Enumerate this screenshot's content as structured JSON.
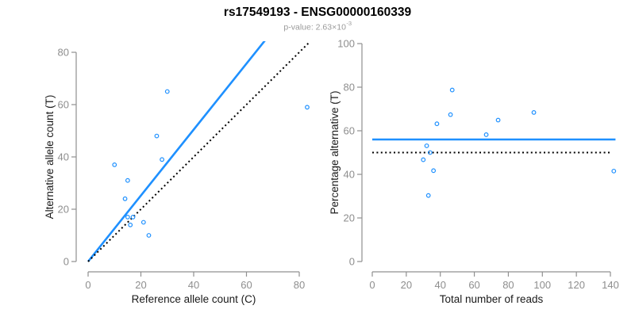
{
  "header": {
    "title": "rs17549193 - ENSG00000160339",
    "pvalue_prefix": "p-value: 2.63×10",
    "pvalue_exponent": "-3"
  },
  "colors": {
    "point_blue": "#1E90FF",
    "line_blue": "#1E90FF",
    "dotted_black": "#000000",
    "axis_line_gray": "#909090",
    "tick_label_gray": "#8e8e8e",
    "axis_title_color": "#1a1a1a",
    "subtitle_gray": "#9a9a9a",
    "title_color": "#000000",
    "background": "#ffffff"
  },
  "chart_data": [
    {
      "type": "scatter",
      "name": "allele-counts-scatter",
      "xlabel": "Reference allele count (C)",
      "ylabel": "Alternative allele count (T)",
      "xlim": [
        0,
        80
      ],
      "ylim": [
        0,
        80
      ],
      "xticks": [
        0,
        20,
        40,
        60,
        80
      ],
      "yticks": [
        0,
        20,
        40,
        60,
        80
      ],
      "grid": false,
      "points": [
        [
          10,
          37
        ],
        [
          15,
          31
        ],
        [
          14,
          24
        ],
        [
          15,
          17
        ],
        [
          17,
          17
        ],
        [
          16,
          14
        ],
        [
          21,
          15
        ],
        [
          23,
          10
        ],
        [
          26,
          48
        ],
        [
          28,
          39
        ],
        [
          30,
          65
        ],
        [
          83,
          59
        ]
      ],
      "lines": [
        {
          "name": "fitted-ratio-line",
          "style": "solid",
          "color": "#1E90FF",
          "x1": 0,
          "y1": 0,
          "x2": 67,
          "y2": 84.5
        },
        {
          "name": "identity-line",
          "style": "dotted",
          "color": "#000000",
          "x1": 0,
          "y1": 0,
          "x2": 85,
          "y2": 85
        }
      ]
    },
    {
      "type": "scatter",
      "name": "percentage-vs-reads-scatter",
      "xlabel": "Total number of reads",
      "ylabel": "Percentage alternative (T)",
      "xlim": [
        0,
        140
      ],
      "ylim": [
        0,
        100
      ],
      "xticks": [
        0,
        20,
        40,
        60,
        80,
        100,
        120,
        140
      ],
      "yticks": [
        0,
        20,
        40,
        60,
        80,
        100
      ],
      "grid": false,
      "points": [
        [
          47,
          78.7
        ],
        [
          46,
          67.4
        ],
        [
          38,
          63.2
        ],
        [
          32,
          53.1
        ],
        [
          34,
          50.0
        ],
        [
          30,
          46.7
        ],
        [
          36,
          41.7
        ],
        [
          33,
          30.3
        ],
        [
          74,
          64.9
        ],
        [
          67,
          58.2
        ],
        [
          95,
          68.4
        ],
        [
          142,
          41.5
        ]
      ],
      "lines": [
        {
          "name": "mean-percentage-line",
          "style": "solid",
          "color": "#1E90FF",
          "x1": 0,
          "y1": 56,
          "x2": 143,
          "y2": 56
        },
        {
          "name": "fifty-percent-line",
          "style": "dotted",
          "color": "#000000",
          "x1": 0,
          "y1": 50,
          "x2": 140.5,
          "y2": 50
        }
      ]
    }
  ]
}
